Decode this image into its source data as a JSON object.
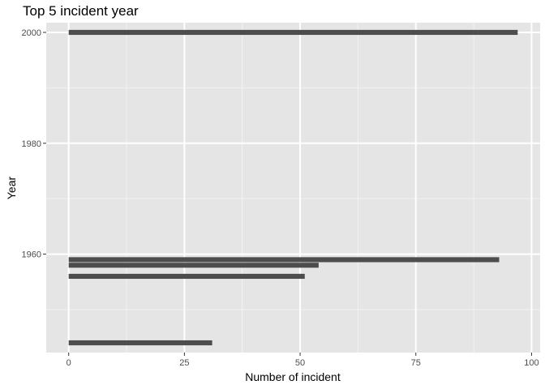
{
  "chart_data": {
    "type": "bar",
    "orientation": "horizontal",
    "title": "Top 5 incident year",
    "xlabel": "Number of incident",
    "ylabel": "Year",
    "xlim": [
      -4.85,
      101.85
    ],
    "ylim": [
      1942.25,
      2001.75
    ],
    "x_ticks": [
      0,
      25,
      50,
      75,
      100
    ],
    "y_ticks": [
      1960,
      1980,
      2000
    ],
    "grid": true,
    "bar_color": "#4d4d4d",
    "panel_background": "#e5e5e5",
    "bars": [
      {
        "year": 2000,
        "count": 97
      },
      {
        "year": 1959,
        "count": 93
      },
      {
        "year": 1958,
        "count": 54
      },
      {
        "year": 1956,
        "count": 51
      },
      {
        "year": 1944,
        "count": 31
      }
    ]
  }
}
